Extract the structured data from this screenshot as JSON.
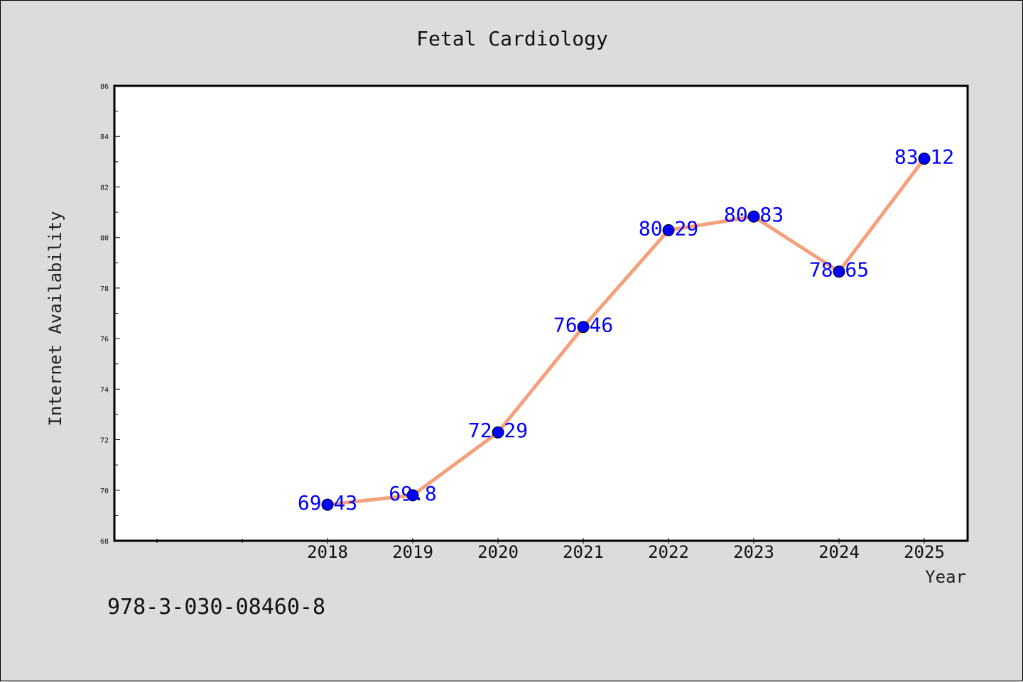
{
  "chart_data": {
    "type": "line",
    "title": "Fetal Cardiology",
    "xlabel": "Year",
    "ylabel": "Internet Availability",
    "x": [
      "2018",
      "2019",
      "2020",
      "2021",
      "2022",
      "2023",
      "2024",
      "2025"
    ],
    "series": [
      {
        "values": [
          69.43,
          69.8,
          72.29,
          76.46,
          80.29,
          80.83,
          78.65,
          83.12
        ],
        "labels": [
          "69.43",
          "69.8",
          "72.29",
          "76.46",
          "80.29",
          "80.83",
          "78.65",
          "83.12"
        ],
        "line_color": "#f4a07a",
        "marker_color": "#0000ff"
      }
    ],
    "ylim": [
      68,
      86
    ],
    "yticks": [
      "68",
      "70",
      "72",
      "74",
      "76",
      "78",
      "80",
      "82",
      "84",
      "86"
    ],
    "grid": false,
    "legend": "none"
  },
  "footer_text": "978-3-030-08460-8",
  "colors": {
    "background": "#dcdcdc",
    "plot_background": "#ffffff",
    "data_label": "#0000ff"
  }
}
